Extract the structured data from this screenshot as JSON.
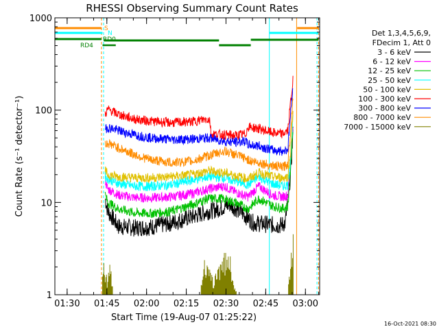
{
  "chart_data": {
    "type": "line",
    "title": "RHESSI Observing Summary Count Rates",
    "xlabel": "Start Time (19-Aug-07 01:25:22)",
    "ylabel": "Count Rate (s⁻¹ detector⁻¹)",
    "y_scale": "log",
    "ylim": [
      1,
      1000
    ],
    "xlim_minutes_from_start": [
      0,
      100
    ],
    "x_ticks": [
      {
        "label": "01:30",
        "value": 4.63
      },
      {
        "label": "01:45",
        "value": 19.63
      },
      {
        "label": "02:00",
        "value": 34.63
      },
      {
        "label": "02:15",
        "value": 49.63
      },
      {
        "label": "02:30",
        "value": 64.63
      },
      {
        "label": "02:45",
        "value": 79.63
      },
      {
        "label": "03:00",
        "value": 94.63
      }
    ],
    "y_ticks": [
      {
        "label": "1",
        "value": 1
      },
      {
        "label": "10",
        "value": 10
      },
      {
        "label": "100",
        "value": 100
      },
      {
        "label": "1000",
        "value": 1000
      }
    ],
    "legend": {
      "position": "right",
      "header": [
        "Det 1,3,4,5,6,9,",
        "FDecim 1, Att 0"
      ]
    },
    "series": [
      {
        "name": "3 - 6 keV",
        "color": "#000000",
        "points": [
          [
            19,
            11
          ],
          [
            20,
            8
          ],
          [
            24,
            5.5
          ],
          [
            30,
            5.3
          ],
          [
            36,
            5.4
          ],
          [
            44,
            6
          ],
          [
            52,
            7
          ],
          [
            58,
            8
          ],
          [
            62,
            8.5
          ],
          [
            66,
            9.5
          ],
          [
            70,
            8
          ],
          [
            75,
            6
          ],
          [
            80,
            5.8
          ],
          [
            85,
            5.6
          ],
          [
            87,
            6
          ],
          [
            89,
            20
          ],
          [
            90,
            60
          ]
        ]
      },
      {
        "name": "6 - 12 keV",
        "color": "#ff00ff",
        "points": [
          [
            19,
            17
          ],
          [
            20,
            14
          ],
          [
            24,
            12
          ],
          [
            30,
            11.3
          ],
          [
            36,
            11.2
          ],
          [
            44,
            11.5
          ],
          [
            52,
            12.5
          ],
          [
            58,
            14
          ],
          [
            64,
            15
          ],
          [
            68,
            13
          ],
          [
            73,
            11.5
          ],
          [
            77,
            15
          ],
          [
            82,
            12
          ],
          [
            86,
            11.5
          ],
          [
            88,
            12
          ],
          [
            89,
            25
          ],
          [
            90,
            80
          ]
        ]
      },
      {
        "name": "12 - 25 keV",
        "color": "#00c000",
        "points": [
          [
            19,
            12
          ],
          [
            20,
            10
          ],
          [
            24,
            8.5
          ],
          [
            30,
            7.7
          ],
          [
            36,
            7.6
          ],
          [
            44,
            8
          ],
          [
            52,
            9.5
          ],
          [
            58,
            11
          ],
          [
            63,
            11
          ],
          [
            68,
            10
          ],
          [
            73,
            8.5
          ],
          [
            77,
            11
          ],
          [
            82,
            9.2
          ],
          [
            86,
            8.6
          ],
          [
            88,
            9
          ],
          [
            89,
            22
          ],
          [
            90,
            70
          ]
        ]
      },
      {
        "name": "25 - 50 keV",
        "color": "#00ffff",
        "points": [
          [
            19,
            19
          ],
          [
            20,
            18
          ],
          [
            24,
            16
          ],
          [
            30,
            15
          ],
          [
            36,
            14.9
          ],
          [
            44,
            15.5
          ],
          [
            52,
            17.5
          ],
          [
            58,
            19
          ],
          [
            64,
            18.5
          ],
          [
            68,
            17
          ],
          [
            73,
            15.5
          ],
          [
            77,
            19
          ],
          [
            82,
            16
          ],
          [
            86,
            15
          ],
          [
            88,
            15.5
          ],
          [
            89,
            30
          ],
          [
            90,
            90
          ]
        ]
      },
      {
        "name": "50 - 100 keV",
        "color": "#e0c000",
        "points": [
          [
            19,
            22
          ],
          [
            20,
            20
          ],
          [
            24,
            19
          ],
          [
            30,
            18.5
          ],
          [
            36,
            18.5
          ],
          [
            44,
            19
          ],
          [
            52,
            20
          ],
          [
            58,
            22
          ],
          [
            64,
            21
          ],
          [
            68,
            19.5
          ],
          [
            73,
            18
          ],
          [
            77,
            21
          ],
          [
            82,
            19
          ],
          [
            86,
            18.5
          ],
          [
            88,
            19
          ],
          [
            89,
            35
          ],
          [
            90,
            100
          ]
        ]
      },
      {
        "name": "100 - 300 keV",
        "color": "#ff0000",
        "points": [
          [
            19,
            90
          ],
          [
            20,
            102
          ],
          [
            24,
            90
          ],
          [
            30,
            80
          ],
          [
            36,
            76
          ],
          [
            44,
            73
          ],
          [
            52,
            75
          ],
          [
            57,
            80
          ],
          [
            58.5,
            79
          ],
          [
            59,
            55
          ],
          [
            64,
            54
          ],
          [
            68,
            53
          ],
          [
            72,
            55
          ],
          [
            73,
            66
          ],
          [
            77,
            63
          ],
          [
            82,
            57
          ],
          [
            86,
            55
          ],
          [
            88,
            60
          ],
          [
            89,
            120
          ],
          [
            90,
            220
          ]
        ]
      },
      {
        "name": "300 - 800 keV",
        "color": "#0000ff",
        "points": [
          [
            19,
            62
          ],
          [
            20,
            65
          ],
          [
            24,
            60
          ],
          [
            30,
            54
          ],
          [
            36,
            50
          ],
          [
            44,
            48
          ],
          [
            52,
            48.5
          ],
          [
            58,
            50
          ],
          [
            64,
            46
          ],
          [
            68,
            45
          ],
          [
            72,
            46
          ],
          [
            73,
            42
          ],
          [
            77,
            41
          ],
          [
            82,
            37
          ],
          [
            86,
            36
          ],
          [
            88,
            38
          ],
          [
            89,
            90
          ],
          [
            90,
            200
          ]
        ]
      },
      {
        "name": "800 - 7000 keV",
        "color": "#ff8c00",
        "points": [
          [
            19,
            42
          ],
          [
            20,
            44
          ],
          [
            24,
            39
          ],
          [
            30,
            33
          ],
          [
            36,
            29
          ],
          [
            44,
            27
          ],
          [
            52,
            28
          ],
          [
            58,
            32
          ],
          [
            64,
            36
          ],
          [
            68,
            33
          ],
          [
            72,
            30
          ],
          [
            74,
            28
          ],
          [
            77,
            27
          ],
          [
            82,
            25
          ],
          [
            86,
            24
          ],
          [
            88,
            26
          ],
          [
            89,
            60
          ],
          [
            90,
            150
          ]
        ]
      },
      {
        "name": "7000 - 15000 keV",
        "color": "#808000",
        "points": [
          [
            18,
            2.9
          ],
          [
            19,
            2
          ],
          [
            20,
            1.5
          ],
          [
            21,
            2.8
          ],
          [
            22,
            1
          ],
          [
            55,
            1
          ],
          [
            56,
            2.7
          ],
          [
            60,
            1.5
          ],
          [
            63,
            2.9
          ],
          [
            66,
            3
          ],
          [
            68,
            1.2
          ],
          [
            69,
            1
          ],
          [
            88,
            1
          ],
          [
            89,
            3
          ],
          [
            90,
            6
          ]
        ]
      }
    ],
    "annotations": [
      "S",
      "N",
      "RD0",
      "RD4"
    ]
  },
  "footer_timestamp": "16-Oct-2021 08:30"
}
